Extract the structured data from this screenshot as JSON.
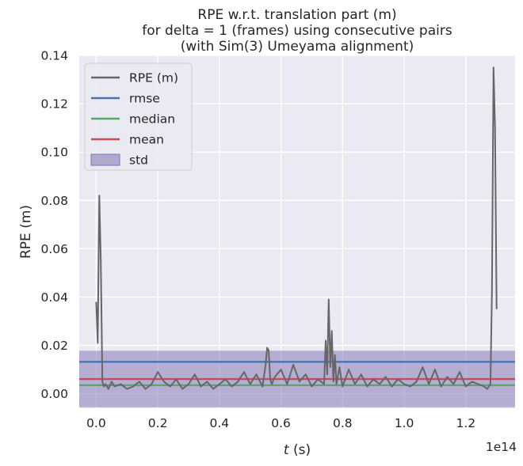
{
  "chart_data": {
    "type": "line",
    "title_lines": [
      "RPE w.r.t. translation part (m)",
      "for delta = 1 (frames) using consecutive pairs",
      "(with Sim(3) Umeyama alignment)"
    ],
    "xlabel_italic": "t",
    "xlabel_unit": " (s)",
    "ylabel": "RPE (m)",
    "x_multiplier_label": "1e14",
    "x_scale": 100000000000000.0,
    "xlim": [
      -0.055,
      1.36
    ],
    "ylim": [
      -0.006,
      0.14
    ],
    "x_ticks": [
      0.0,
      0.2,
      0.4,
      0.6,
      0.8,
      1.0,
      1.2
    ],
    "x_tick_labels": [
      "0.0",
      "0.2",
      "0.4",
      "0.6",
      "0.8",
      "1.0",
      "1.2"
    ],
    "y_ticks": [
      0.0,
      0.02,
      0.04,
      0.06,
      0.08,
      0.1,
      0.12,
      0.14
    ],
    "y_tick_labels": [
      "0.00",
      "0.02",
      "0.04",
      "0.06",
      "0.08",
      "0.10",
      "0.12",
      "0.14"
    ],
    "grid": true,
    "legend_position": "top-left",
    "legend": [
      {
        "label": "RPE (m)",
        "kind": "line",
        "color": "#666666"
      },
      {
        "label": "rmse",
        "kind": "line",
        "color": "#4c72b0"
      },
      {
        "label": "median",
        "kind": "line",
        "color": "#55a868"
      },
      {
        "label": "mean",
        "kind": "line",
        "color": "#c44e52"
      },
      {
        "label": "std",
        "kind": "patch",
        "color": "#8172b2"
      }
    ],
    "stats": {
      "rmse": 0.0132,
      "median": 0.0035,
      "mean": 0.0061,
      "std": 0.0117
    },
    "series": [
      {
        "name": "RPE (m)",
        "color": "#666666",
        "x": [
          0.0,
          0.005,
          0.01,
          0.015,
          0.02,
          0.025,
          0.03,
          0.04,
          0.05,
          0.06,
          0.08,
          0.1,
          0.12,
          0.14,
          0.16,
          0.18,
          0.2,
          0.22,
          0.24,
          0.26,
          0.28,
          0.3,
          0.32,
          0.34,
          0.36,
          0.38,
          0.4,
          0.42,
          0.44,
          0.46,
          0.48,
          0.5,
          0.52,
          0.54,
          0.55,
          0.555,
          0.56,
          0.565,
          0.57,
          0.58,
          0.6,
          0.62,
          0.64,
          0.66,
          0.68,
          0.7,
          0.72,
          0.74,
          0.745,
          0.75,
          0.755,
          0.76,
          0.765,
          0.77,
          0.775,
          0.78,
          0.79,
          0.8,
          0.82,
          0.84,
          0.86,
          0.88,
          0.9,
          0.92,
          0.94,
          0.96,
          0.98,
          1.0,
          1.02,
          1.04,
          1.06,
          1.08,
          1.1,
          1.12,
          1.14,
          1.16,
          1.18,
          1.2,
          1.22,
          1.24,
          1.26,
          1.27,
          1.28,
          1.285,
          1.29,
          1.295,
          1.3
        ],
        "y": [
          0.038,
          0.021,
          0.082,
          0.055,
          0.005,
          0.003,
          0.004,
          0.002,
          0.005,
          0.003,
          0.004,
          0.002,
          0.003,
          0.005,
          0.002,
          0.004,
          0.009,
          0.005,
          0.003,
          0.006,
          0.002,
          0.004,
          0.008,
          0.003,
          0.005,
          0.002,
          0.004,
          0.006,
          0.003,
          0.005,
          0.009,
          0.004,
          0.008,
          0.003,
          0.012,
          0.019,
          0.018,
          0.006,
          0.004,
          0.007,
          0.01,
          0.004,
          0.012,
          0.005,
          0.008,
          0.003,
          0.006,
          0.004,
          0.022,
          0.008,
          0.039,
          0.011,
          0.026,
          0.005,
          0.016,
          0.004,
          0.011,
          0.003,
          0.01,
          0.004,
          0.008,
          0.003,
          0.006,
          0.004,
          0.007,
          0.003,
          0.006,
          0.004,
          0.003,
          0.005,
          0.011,
          0.004,
          0.01,
          0.003,
          0.007,
          0.004,
          0.009,
          0.003,
          0.005,
          0.004,
          0.003,
          0.002,
          0.004,
          0.042,
          0.135,
          0.11,
          0.035
        ]
      }
    ]
  }
}
